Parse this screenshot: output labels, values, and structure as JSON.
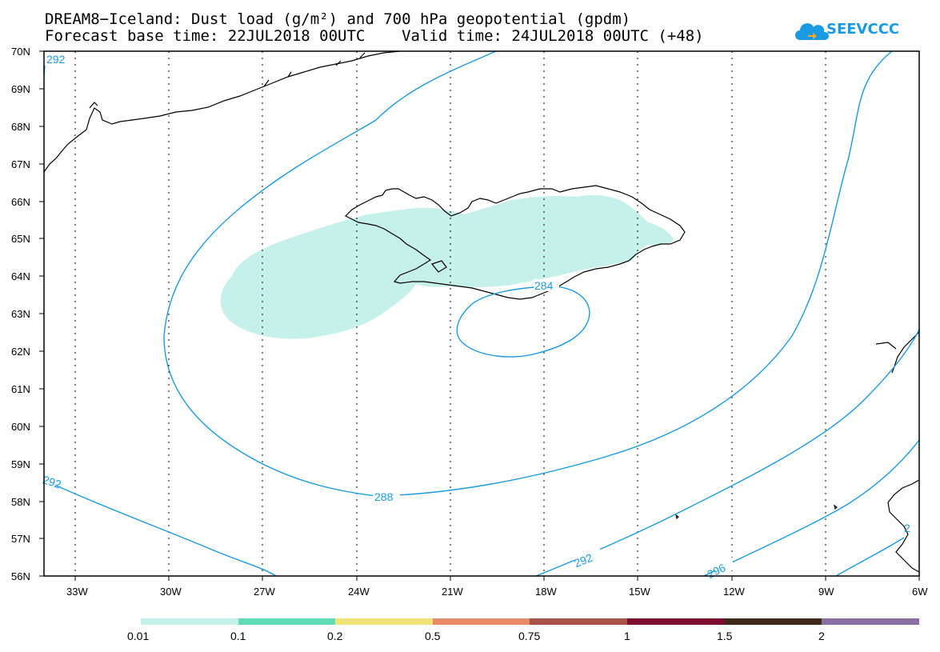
{
  "header": {
    "title_line1": "DREAM8−Iceland: Dust load (g/m²) and 700 hPa geopotential (gpdm)",
    "title_line2": "Forecast base time: 22JUL2018 00UTC    Valid time: 24JUL2018 00UTC (+48)"
  },
  "logo": {
    "text": "SEEVCCC",
    "color": "#1a9ae0"
  },
  "map": {
    "lat_labels": [
      "70N",
      "69N",
      "68N",
      "67N",
      "66N",
      "65N",
      "64N",
      "63N",
      "62N",
      "61N",
      "60N",
      "59N",
      "58N",
      "57N",
      "56N"
    ],
    "lon_labels": [
      "33W",
      "30W",
      "27W",
      "24W",
      "21W",
      "18W",
      "15W",
      "12W",
      "9W",
      "6W"
    ],
    "contour_labels": [
      "292",
      "292",
      "288",
      "284",
      "292",
      "296",
      "2"
    ],
    "contour_color": "#1a9ae0",
    "dust_fill_color": "#c6f0ea",
    "grid": "dotted"
  },
  "legend": {
    "colors": [
      "#c6f0ea",
      "#5fdcb7",
      "#f2e378",
      "#e8896a",
      "#a8524a",
      "#7d0c30",
      "#3d2a1a",
      "#8a6fa3"
    ],
    "labels": [
      "0.01",
      "0.1",
      "0.2",
      "0.5",
      "0.75",
      "1",
      "1.5",
      "2"
    ]
  }
}
